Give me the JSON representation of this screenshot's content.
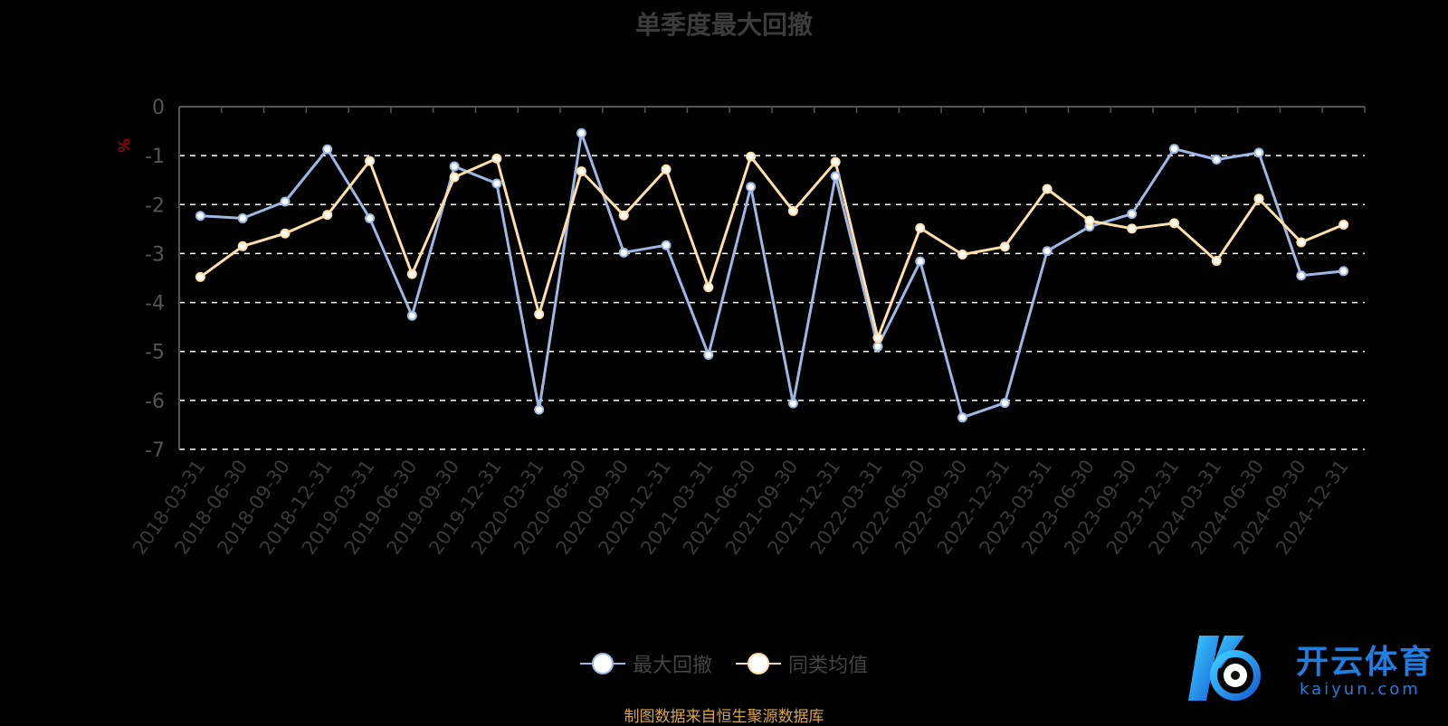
{
  "title": "单季度最大回撤",
  "source": "制图数据来自恒生聚源数据库",
  "logo": {
    "cn": "开云体育",
    "en": "kaiyun.com"
  },
  "colors": {
    "series1": "#9fb8e3",
    "series2": "#ffe0a8",
    "grid": "#ffffff",
    "axis": "#555555",
    "ylabel": "#cc0000"
  },
  "chart_data": {
    "type": "line",
    "title": "单季度最大回撤",
    "ylabel": "%",
    "ylim": [
      -7,
      0
    ],
    "yticks": [
      0,
      -1,
      -2,
      -3,
      -4,
      -5,
      -6,
      -7
    ],
    "grid": true,
    "legend": "bottom",
    "categories": [
      "2018-03-31",
      "2018-06-30",
      "2018-09-30",
      "2018-12-31",
      "2019-03-31",
      "2019-06-30",
      "2019-09-30",
      "2019-12-31",
      "2020-03-31",
      "2020-06-30",
      "2020-09-30",
      "2020-12-31",
      "2021-03-31",
      "2021-06-30",
      "2021-09-30",
      "2021-12-31",
      "2022-03-31",
      "2022-06-30",
      "2022-09-30",
      "2022-12-31",
      "2023-03-31",
      "2023-06-30",
      "2023-09-30",
      "2023-12-31",
      "2024-03-31",
      "2024-06-30",
      "2024-09-30",
      "2024-12-31"
    ],
    "series": [
      {
        "name": "最大回撤",
        "values": [
          -2.23,
          -2.28,
          -1.94,
          -0.87,
          -2.28,
          -4.27,
          -1.22,
          -1.57,
          -6.19,
          -0.54,
          -2.98,
          -2.83,
          -5.07,
          -1.64,
          -6.06,
          -1.42,
          -4.9,
          -3.16,
          -6.35,
          -6.05,
          -2.95,
          -2.45,
          -2.19,
          -0.86,
          -1.08,
          -0.94,
          -3.45,
          -3.36
        ]
      },
      {
        "name": "同类均值",
        "values": [
          -3.48,
          -2.85,
          -2.59,
          -2.21,
          -1.11,
          -3.42,
          -1.44,
          -1.06,
          -4.24,
          -1.32,
          -2.22,
          -1.28,
          -3.69,
          -1.02,
          -2.13,
          -1.13,
          -4.72,
          -2.48,
          -3.02,
          -2.86,
          -1.68,
          -2.33,
          -2.49,
          -2.38,
          -3.15,
          -1.88,
          -2.77,
          -2.41
        ]
      }
    ]
  }
}
